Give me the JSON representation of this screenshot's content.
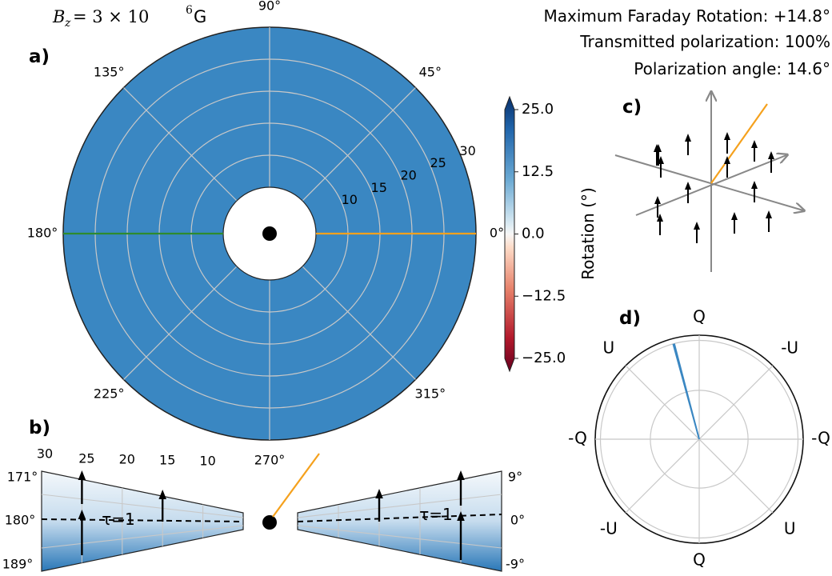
{
  "header": {
    "field": "B_z = 3 × 10^6 G",
    "field_lhs": "B",
    "field_sub": "z",
    "field_rhs": " = 3 × 10",
    "field_exp": "6",
    "field_unit": " G",
    "max_rotation": "Maximum Faraday Rotation: +14.8°",
    "transmitted": "Transmitted polarization:  100%",
    "pol_angle": "Polarization angle: 14.6°"
  },
  "panel_labels": {
    "a": "a)",
    "b": "b)",
    "c": "c)",
    "d": "d)"
  },
  "colors": {
    "field_fill": "#3a87c2",
    "ring_line": "#c8c8c8",
    "orange": "#f5a11d",
    "green": "#2e8b2e",
    "arrow": "#000000",
    "axis_gray": "#888888",
    "stokes_line": "#3a87c2"
  },
  "chart_data": [
    {
      "id": "a",
      "type": "heatmap",
      "projection": "polar",
      "angle_ticks": [
        "0°",
        "45°",
        "90°",
        "135°",
        "180°",
        "225°",
        "270°",
        "315°"
      ],
      "radius_ticks": [
        "10",
        "15",
        "20",
        "25",
        "30"
      ],
      "radius_values": [
        10,
        15,
        20,
        25,
        30
      ],
      "rlim": [
        5,
        30
      ],
      "angle_values": [
        0,
        45,
        90,
        135,
        180,
        225,
        270,
        315
      ],
      "value": 14.8,
      "orange_ray_angle": 0,
      "green_ray_angle": 180,
      "grid": true
    },
    {
      "id": "colorbar",
      "type": "colorbar",
      "label": "Rotation (°)",
      "ticks": [
        "25.0",
        "12.5",
        "0.0",
        "−12.5",
        "−25.0"
      ],
      "tick_values": [
        25,
        12.5,
        0,
        -12.5,
        -25
      ],
      "range": [
        -25,
        25
      ],
      "colormap": "RdBu"
    },
    {
      "id": "b",
      "type": "heatmap",
      "projection": "polar-wedge",
      "left_wedge": {
        "radius_ticks": [
          "30",
          "25",
          "20",
          "15",
          "10"
        ],
        "radius_values": [
          30,
          25,
          20,
          15,
          10
        ],
        "angle_ticks": [
          "171°",
          "180°",
          "189°"
        ],
        "angle_values": [
          171,
          180,
          189
        ],
        "tau_label": "τ=1",
        "arrow_radii": [
          25,
          25,
          15
        ]
      },
      "right_wedge": {
        "angle_ticks": [
          "9°",
          "0°",
          "-9°"
        ],
        "angle_values": [
          9,
          0,
          -9
        ],
        "tau_label": "τ=1",
        "arrow_radii": [
          25,
          25,
          15
        ]
      }
    },
    {
      "id": "d",
      "type": "polar",
      "labels": [
        "Q",
        "-U",
        "-Q",
        "U",
        "Q",
        "-U",
        "-Q",
        "U"
      ],
      "label_angles": [
        90,
        45,
        0,
        -45,
        -90,
        -135,
        180,
        135
      ],
      "rings": [
        0.5,
        1.0
      ],
      "pol_angle": 14.6,
      "pol_length": 0.95
    }
  ]
}
